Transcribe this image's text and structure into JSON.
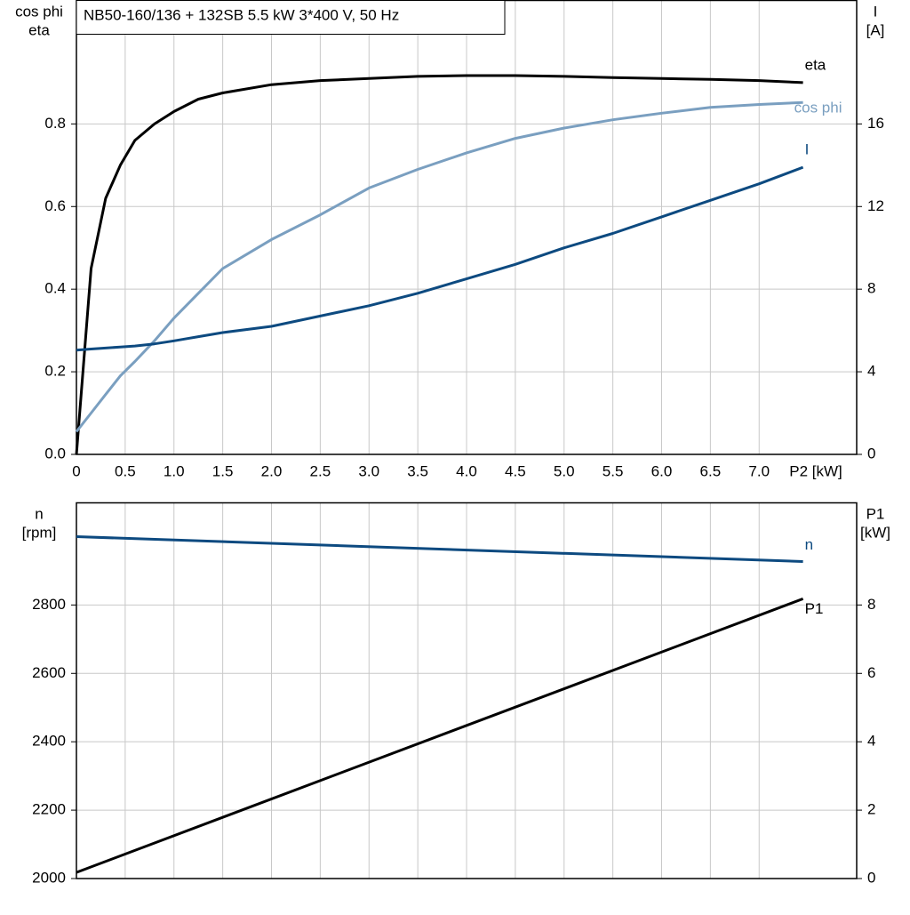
{
  "chart_data": [
    {
      "type": "line",
      "title": "NB50-160/136 + 132SB   5.5 kW   3*400 V, 50 Hz",
      "y_label": [
        "cos phi",
        "eta"
      ],
      "y2_label": [
        "I",
        "[A]"
      ],
      "x_label": "P2 [kW]",
      "x": [
        0,
        0.15,
        0.3,
        0.45,
        0.6,
        0.8,
        1.0,
        1.25,
        1.5,
        2.0,
        2.5,
        3.0,
        3.5,
        4.0,
        4.5,
        5.0,
        5.5,
        6.0,
        6.5,
        7.0,
        7.45
      ],
      "xlim": [
        0,
        8
      ],
      "xticks": [
        0,
        0.5,
        {
          "value": 1,
          "label": "1.0"
        },
        1.5,
        {
          "value": 2,
          "label": "2.0"
        },
        2.5,
        {
          "value": 3,
          "label": "3.0"
        },
        3.5,
        {
          "value": 4,
          "label": "4.0"
        },
        4.5,
        {
          "value": 5,
          "label": "5.0"
        },
        5.5,
        {
          "value": 6,
          "label": "6.0"
        },
        6.5,
        {
          "value": 7,
          "label": "7.0"
        }
      ],
      "ylim": [
        0,
        1.1
      ],
      "yticks": [
        {
          "value": 0,
          "label": "0.0"
        },
        0.2,
        0.4,
        0.6,
        0.8
      ],
      "y2lim": [
        0,
        22
      ],
      "y2ticks": [
        0,
        4,
        8,
        12,
        16
      ],
      "grid": true,
      "series": [
        {
          "name": "eta",
          "color": "#000000",
          "values": [
            0.0,
            0.45,
            0.62,
            0.7,
            0.76,
            0.8,
            0.83,
            0.86,
            0.875,
            0.895,
            0.905,
            0.91,
            0.915,
            0.917,
            0.917,
            0.915,
            0.912,
            0.91,
            0.908,
            0.905,
            0.9
          ]
        },
        {
          "name": "cos phi",
          "color": "#7a9fc0",
          "values": [
            0.055,
            0.1,
            0.145,
            0.19,
            0.225,
            0.275,
            0.33,
            0.39,
            0.45,
            0.52,
            0.58,
            0.645,
            0.69,
            0.73,
            0.765,
            0.79,
            0.81,
            0.826,
            0.84,
            0.847,
            0.852
          ]
        },
        {
          "name": "I",
          "color": "#0d4a80",
          "axis": "y2",
          "values": [
            5.05,
            5.1,
            5.15,
            5.2,
            5.25,
            5.35,
            5.5,
            5.7,
            5.9,
            6.2,
            6.7,
            7.2,
            7.8,
            8.5,
            9.2,
            10.0,
            10.7,
            11.5,
            12.3,
            13.1,
            13.9
          ]
        }
      ]
    },
    {
      "type": "line",
      "y_label": [
        "n",
        "[rpm]"
      ],
      "y2_label": [
        "P1",
        "[kW]"
      ],
      "x": [
        0,
        7.45
      ],
      "xlim": [
        0,
        8
      ],
      "ylim": [
        2000,
        3100
      ],
      "yticks": [
        2000,
        2200,
        2400,
        2600,
        2800
      ],
      "y2lim": [
        0,
        11
      ],
      "y2ticks": [
        0,
        2,
        4,
        6,
        8
      ],
      "grid": true,
      "series": [
        {
          "name": "n",
          "color": "#0d4a80",
          "values": [
            3000,
            2927
          ]
        },
        {
          "name": "P1",
          "color": "#000000",
          "axis": "y2",
          "values": [
            0.18,
            8.18
          ]
        }
      ]
    }
  ]
}
